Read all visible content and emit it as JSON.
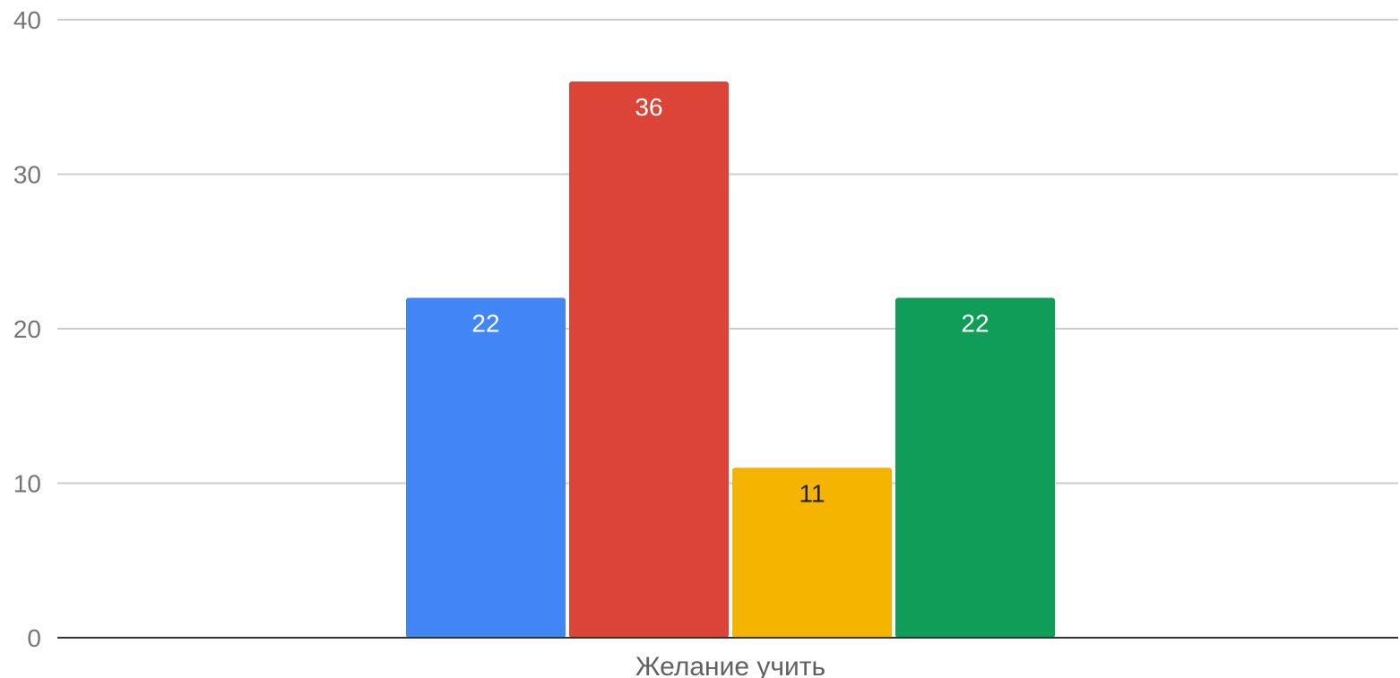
{
  "chart_data": {
    "type": "bar",
    "categories": [
      "Желание учить"
    ],
    "series": [
      {
        "values": [
          22
        ],
        "color": "#4285f4",
        "label_color": "#ffffff"
      },
      {
        "values": [
          36
        ],
        "color": "#db4437",
        "label_color": "#ffffff"
      },
      {
        "values": [
          11
        ],
        "color": "#f4b400",
        "label_color": "#212121"
      },
      {
        "values": [
          22
        ],
        "color": "#0f9d58",
        "label_color": "#ffffff"
      }
    ],
    "title": "",
    "xlabel": "",
    "ylabel": "",
    "ylim": [
      0,
      40
    ],
    "yticks": [
      "0",
      "10",
      "20",
      "30",
      "40"
    ],
    "grid": true,
    "legend": "none"
  }
}
